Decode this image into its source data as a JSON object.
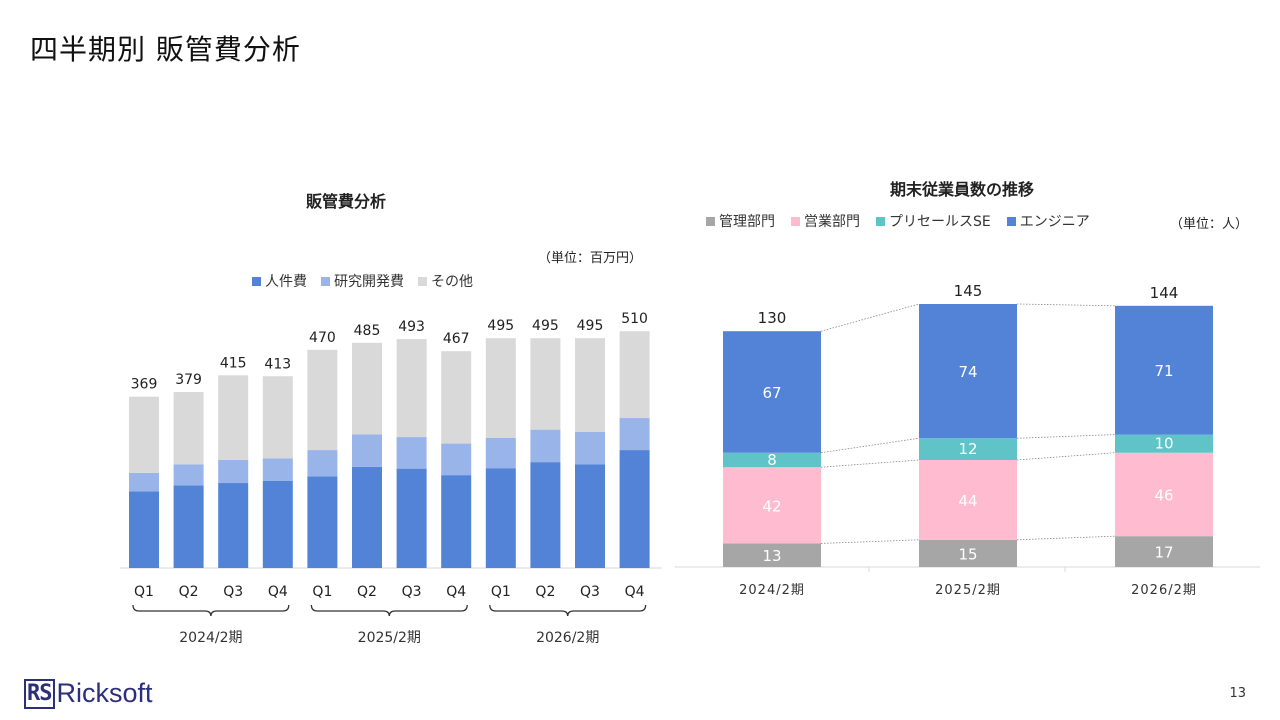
{
  "page": {
    "title": "四半期別 販管費分析",
    "page_number": "13"
  },
  "logo": {
    "mark": "RS",
    "name": "Ricksoft"
  },
  "colors": {
    "personnel": "#5283d6",
    "research": "#98b4e8",
    "other": "#d9d9d9",
    "admin": "#a6a6a6",
    "sales": "#ffbbcf",
    "presales": "#5fc3c8",
    "engineer": "#5283d6"
  },
  "chart_data": [
    {
      "type": "bar",
      "stacked": true,
      "title": "販管費分析",
      "unit": "（単位：百万円）",
      "categories": [
        "Q1",
        "Q2",
        "Q3",
        "Q4",
        "Q1",
        "Q2",
        "Q3",
        "Q4",
        "Q1",
        "Q2",
        "Q3",
        "Q4"
      ],
      "groups": [
        {
          "label": "2024/2期",
          "from": 0,
          "to": 3
        },
        {
          "label": "2025/2期",
          "from": 4,
          "to": 7
        },
        {
          "label": "2026/2期",
          "from": 8,
          "to": 11
        }
      ],
      "totals": [
        369,
        379,
        415,
        413,
        470,
        485,
        493,
        467,
        495,
        495,
        495,
        510
      ],
      "series": [
        {
          "name": "人件費",
          "color_key": "personnel",
          "values": [
            165,
            178,
            183,
            188,
            197,
            218,
            214,
            200,
            215,
            228,
            223,
            254
          ]
        },
        {
          "name": "研究開発費",
          "color_key": "research",
          "values": [
            40,
            45,
            50,
            48,
            57,
            70,
            68,
            68,
            65,
            70,
            70,
            69
          ]
        },
        {
          "name": "その他",
          "color_key": "other",
          "values": [
            164,
            156,
            182,
            177,
            216,
            197,
            211,
            199,
            215,
            197,
            202,
            187
          ]
        }
      ],
      "ylim": [
        0,
        560
      ],
      "legend": "top"
    },
    {
      "type": "bar",
      "stacked": true,
      "title": "期末従業員数の推移",
      "unit": "（単位：人）",
      "categories": [
        "2024/2期",
        "2025/2期",
        "2026/2期"
      ],
      "totals": [
        130,
        145,
        144
      ],
      "series": [
        {
          "name": "管理部門",
          "color_key": "admin",
          "values": [
            13,
            15,
            17
          ]
        },
        {
          "name": "営業部門",
          "color_key": "sales",
          "values": [
            42,
            44,
            46
          ]
        },
        {
          "name": "プリセールスSE",
          "color_key": "presales",
          "values": [
            8,
            12,
            10
          ]
        },
        {
          "name": "エンジニア",
          "color_key": "engineer",
          "values": [
            67,
            74,
            71
          ]
        }
      ],
      "ylim": [
        0,
        155
      ],
      "legend": "top"
    }
  ]
}
